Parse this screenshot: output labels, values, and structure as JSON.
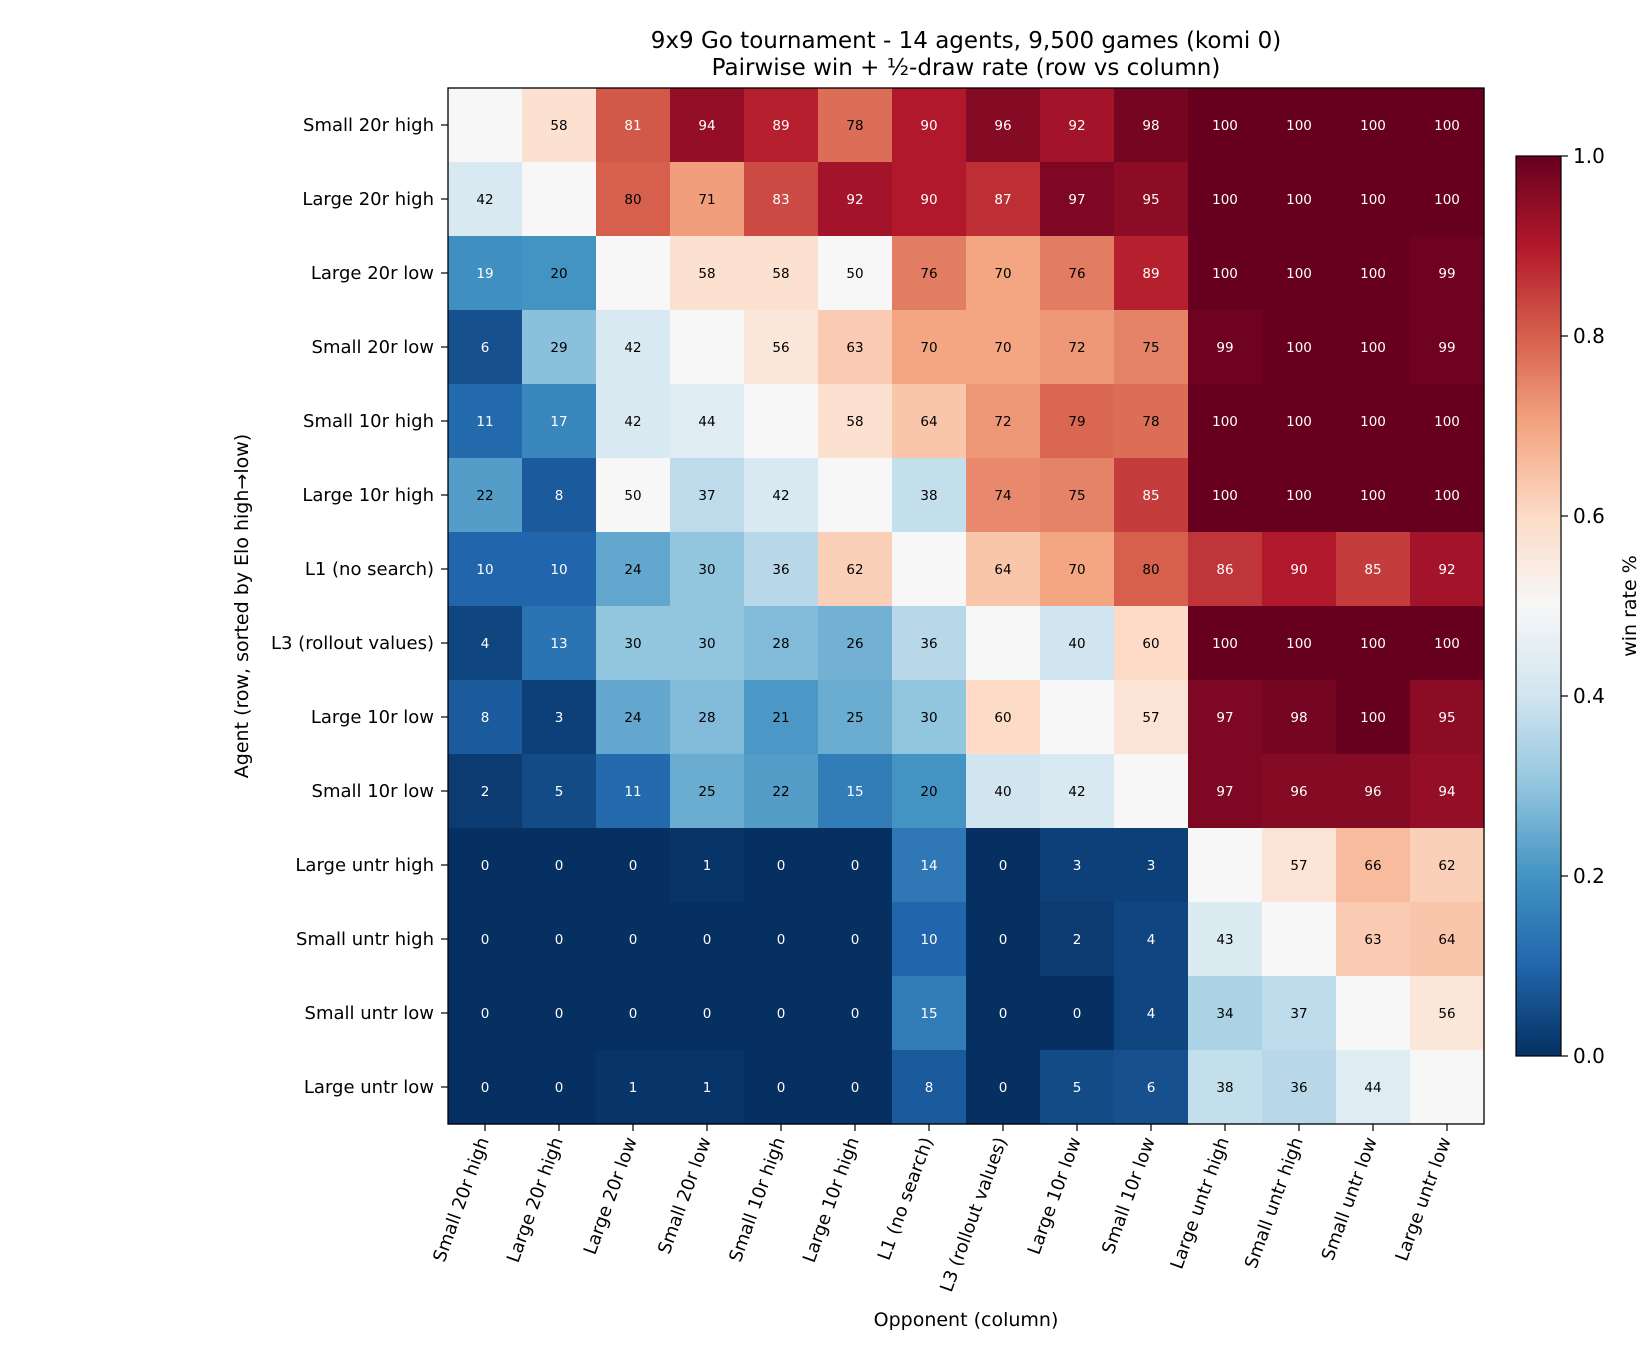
{
  "chart_data": {
    "type": "heatmap",
    "title": "9x9 Go tournament - 14 agents, 9,500 games (komi 0)",
    "subtitle": "Pairwise win + ½-draw rate (row vs column)",
    "xlabel": "Opponent (column)",
    "ylabel": "Agent (row, sorted by Elo high→low)",
    "colorbar_label": "win rate %",
    "colorbar_ticks": [
      "0.0",
      "0.2",
      "0.4",
      "0.6",
      "0.8",
      "1.0"
    ],
    "colormap": "RdBu_r",
    "value_range": [
      0,
      1
    ],
    "agents": [
      "Small 20r high",
      "Large 20r high",
      "Large 20r low",
      "Small 20r low",
      "Small 10r high",
      "Large 10r high",
      "L1 (no search)",
      "L3 (rollout values)",
      "Large 10r low",
      "Small 10r low",
      "Large untr high",
      "Small untr high",
      "Small untr low",
      "Large untr low"
    ],
    "matrix": [
      [
        null,
        58,
        81,
        94,
        89,
        78,
        90,
        96,
        92,
        98,
        100,
        100,
        100,
        100
      ],
      [
        42,
        null,
        80,
        71,
        83,
        92,
        90,
        87,
        97,
        95,
        100,
        100,
        100,
        100
      ],
      [
        19,
        20,
        null,
        58,
        58,
        50,
        76,
        70,
        76,
        89,
        100,
        100,
        100,
        99
      ],
      [
        6,
        29,
        42,
        null,
        56,
        63,
        70,
        70,
        72,
        75,
        99,
        100,
        100,
        99
      ],
      [
        11,
        17,
        42,
        44,
        null,
        58,
        64,
        72,
        79,
        78,
        100,
        100,
        100,
        100
      ],
      [
        22,
        8,
        50,
        37,
        42,
        null,
        38,
        74,
        75,
        85,
        100,
        100,
        100,
        100
      ],
      [
        10,
        10,
        24,
        30,
        36,
        62,
        null,
        64,
        70,
        80,
        86,
        90,
        85,
        92
      ],
      [
        4,
        13,
        30,
        30,
        28,
        26,
        36,
        null,
        40,
        60,
        100,
        100,
        100,
        100
      ],
      [
        8,
        3,
        24,
        28,
        21,
        25,
        30,
        60,
        null,
        57,
        97,
        98,
        100,
        95
      ],
      [
        2,
        5,
        11,
        25,
        22,
        15,
        20,
        40,
        42,
        null,
        97,
        96,
        96,
        94
      ],
      [
        0,
        0,
        0,
        1,
        0,
        0,
        14,
        0,
        3,
        3,
        null,
        57,
        66,
        62
      ],
      [
        0,
        0,
        0,
        0,
        0,
        0,
        10,
        0,
        2,
        4,
        43,
        null,
        63,
        64
      ],
      [
        0,
        0,
        0,
        0,
        0,
        0,
        15,
        0,
        0,
        4,
        34,
        37,
        null,
        56
      ],
      [
        0,
        0,
        1,
        1,
        0,
        0,
        8,
        0,
        5,
        6,
        38,
        36,
        44,
        null
      ]
    ]
  }
}
